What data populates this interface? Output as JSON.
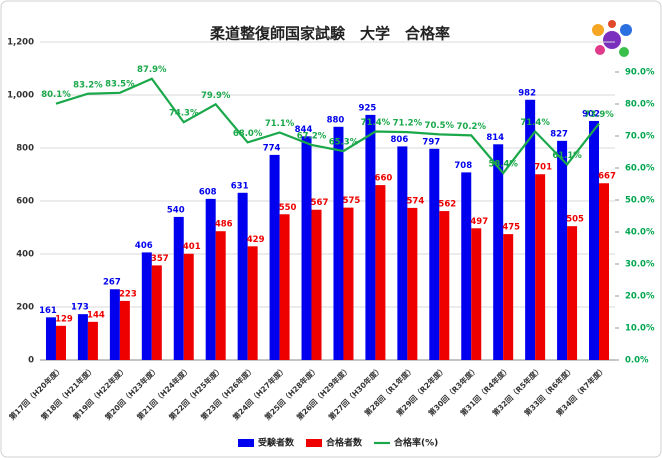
{
  "chart_data": {
    "type": "bar_line",
    "title": "柔道整復師国家試験　大学　合格率",
    "categories": [
      "第17回（H20年度）",
      "第18回（H21年度）",
      "第19回（H22年度）",
      "第20回（H23年度）",
      "第21回（H24年度）",
      "第22回（H25年度）",
      "第23回（H26年度）",
      "第24回（H27年度）",
      "第25回（H28年度）",
      "第26回（H29年度）",
      "第27回（H30年度）",
      "第28回（R1年度）",
      "第29回（R2年度）",
      "第30回（R3年度）",
      "第31回（R4年度）",
      "第32回（R5年度）",
      "第33回（R6年度）",
      "第34回（R7年度）"
    ],
    "series": [
      {
        "name": "受験者数",
        "color": "#0000ee",
        "type": "bar",
        "values": [
          161,
          173,
          267,
          406,
          540,
          608,
          631,
          774,
          844,
          880,
          925,
          806,
          797,
          708,
          814,
          982,
          827,
          902
        ]
      },
      {
        "name": "合格者数",
        "color": "#ee0000",
        "type": "bar",
        "values": [
          129,
          144,
          223,
          357,
          401,
          486,
          429,
          550,
          567,
          575,
          660,
          574,
          562,
          497,
          475,
          701,
          505,
          667
        ]
      },
      {
        "name": "合格率(%)",
        "color": "#1aa84a",
        "type": "line",
        "axis": "y2",
        "values": [
          80.1,
          83.2,
          83.5,
          87.9,
          74.3,
          79.9,
          68.0,
          71.1,
          67.2,
          65.3,
          71.4,
          71.2,
          70.5,
          70.2,
          58.4,
          71.4,
          61.1,
          73.9
        ],
        "value_labels": [
          "80.1%",
          "83.2%",
          "83.5%",
          "87.9%",
          "74.3%",
          "79.9%",
          "68.0%",
          "71.1%",
          "67.2%",
          "65.3%",
          "71.4%",
          "71.2%",
          "70.5%",
          "70.2%",
          "58.4%",
          "71.4%",
          "61.1%",
          "73.9%"
        ]
      }
    ],
    "ylim": [
      0,
      1200
    ],
    "yticks": [
      0,
      200,
      400,
      600,
      800,
      {
        "value": 1000,
        "label": "1,000"
      },
      {
        "value": 1200,
        "label": "1,200"
      }
    ],
    "y2lim": [
      0,
      90
    ],
    "y2ticks": [
      {
        "value": 0,
        "label": "0.0%"
      },
      {
        "value": 10,
        "label": "10.0%"
      },
      {
        "value": 20,
        "label": "20.0%"
      },
      {
        "value": 30,
        "label": "30.0%"
      },
      {
        "value": 40,
        "label": "40.0%"
      },
      {
        "value": 50,
        "label": "50.0%"
      },
      {
        "value": 60,
        "label": "60.0%"
      },
      {
        "value": 70,
        "label": "70.0%"
      },
      {
        "value": 80,
        "label": "80.0%"
      },
      {
        "value": 90,
        "label": "90.0%"
      }
    ],
    "grid": true,
    "legend": "bottom"
  }
}
